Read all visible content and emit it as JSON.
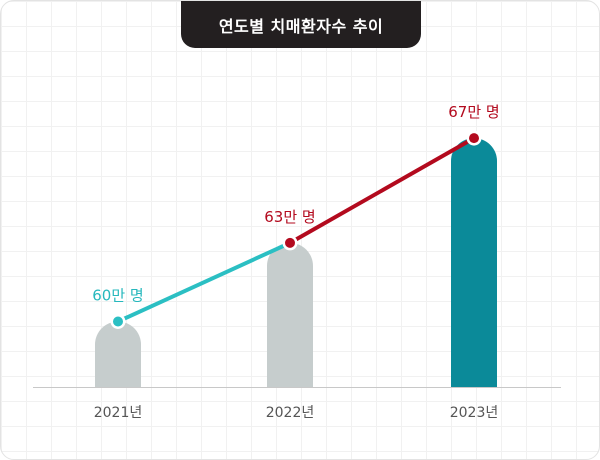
{
  "chart_data": {
    "type": "bar",
    "title": "연도별 치매환자수 추이",
    "categories": [
      "2021년",
      "2022년",
      "2023년"
    ],
    "values": [
      60,
      63,
      67
    ],
    "value_labels": [
      "60만 명",
      "63만 명",
      "67만 명"
    ],
    "unit": "만 명",
    "overlay": "line",
    "colors": {
      "bar_past": "#c6cdcd",
      "bar_current": "#0b8a99",
      "line_rise_1": "#2bbfc3",
      "line_rise_2": "#b30a1e",
      "label_1": "#26b8bd",
      "label_2": "#b30a1e",
      "axis": "#c8c8c8",
      "tick_text": "#555555"
    }
  }
}
